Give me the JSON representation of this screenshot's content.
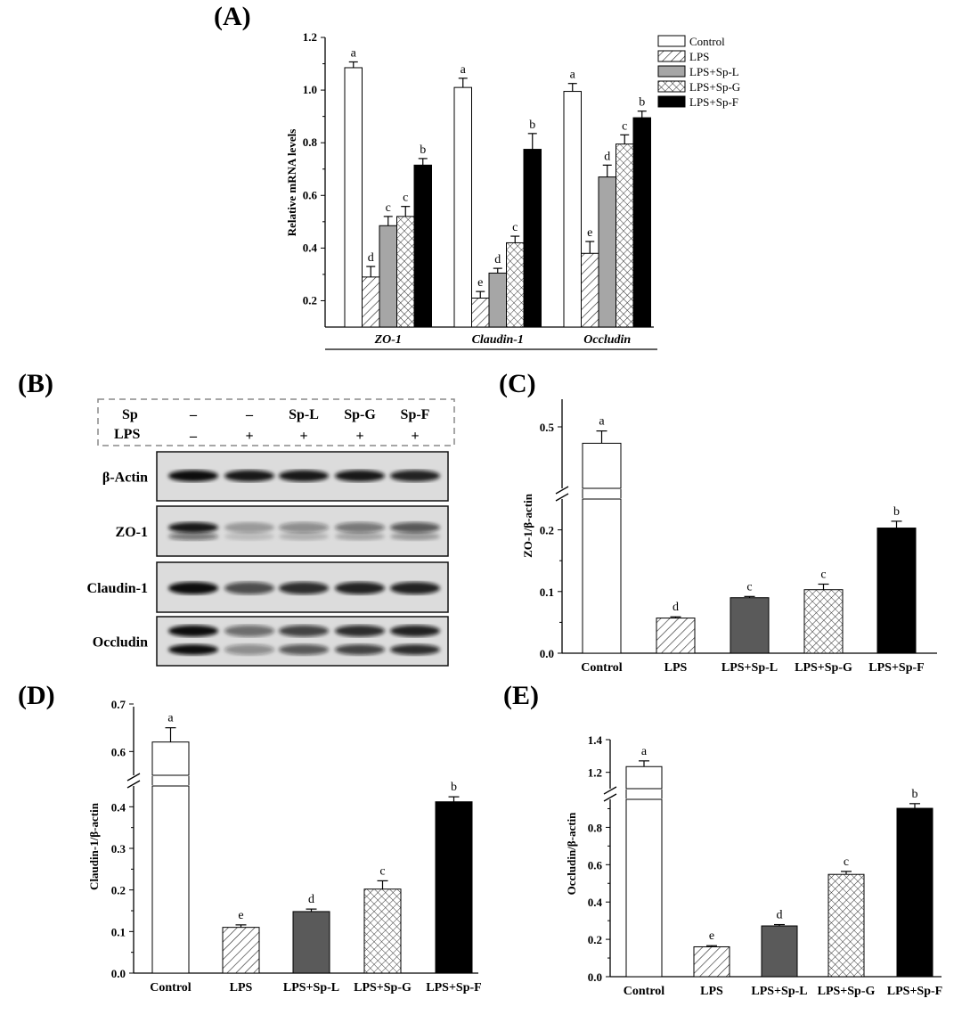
{
  "chart_data": [
    {
      "panel": "(A)",
      "type": "bar",
      "ylabel": "Relative mRNA levels",
      "ylim": [
        0.1,
        1.2
      ],
      "yticks": [
        "0.2",
        "0.4",
        "0.6",
        "0.8",
        "1.0",
        "1.2"
      ],
      "categories": [
        "ZO-1",
        "Claudin-1",
        "Occludin"
      ],
      "series": [
        {
          "name": "Control",
          "pattern": "white",
          "values": [
            1.085,
            1.01,
            0.995
          ],
          "errors": [
            0.022,
            0.035,
            0.03
          ],
          "letters": [
            "a",
            "a",
            "a"
          ]
        },
        {
          "name": "LPS",
          "pattern": "hatch",
          "values": [
            0.29,
            0.21,
            0.38
          ],
          "errors": [
            0.04,
            0.025,
            0.045
          ],
          "letters": [
            "d",
            "e",
            "e"
          ]
        },
        {
          "name": "LPS+Sp-L",
          "pattern": "gray",
          "values": [
            0.485,
            0.305,
            0.67
          ],
          "errors": [
            0.035,
            0.018,
            0.045
          ],
          "letters": [
            "c",
            "d",
            "d"
          ]
        },
        {
          "name": "LPS+Sp-G",
          "pattern": "crosshatch",
          "values": [
            0.52,
            0.42,
            0.795
          ],
          "errors": [
            0.038,
            0.025,
            0.035
          ],
          "letters": [
            "c",
            "c",
            "c"
          ]
        },
        {
          "name": "LPS+Sp-F",
          "pattern": "black",
          "values": [
            0.715,
            0.775,
            0.895
          ],
          "errors": [
            0.025,
            0.06,
            0.025
          ],
          "letters": [
            "b",
            "b",
            "b"
          ]
        }
      ],
      "legend": [
        "Control",
        "LPS",
        "LPS+Sp-L",
        "LPS+Sp-G",
        "LPS+Sp-F"
      ]
    },
    {
      "panel": "(C)",
      "type": "bar",
      "ylabel": "ZO-1/β-actin",
      "categories": [
        "Control",
        "LPS",
        "LPS+Sp-L",
        "LPS+Sp-G",
        "LPS+Sp-F"
      ],
      "patterns": [
        "white",
        "hatch",
        "dgray",
        "crosshatch",
        "black"
      ],
      "values": [
        0.46,
        0.057,
        0.09,
        0.103,
        0.203
      ],
      "errors": [
        0.03,
        0.002,
        0.002,
        0.009,
        0.011
      ],
      "letters": [
        "a",
        "d",
        "c",
        "c",
        "b"
      ],
      "yticks": [
        "0.0",
        "0.1",
        "0.2",
        "0.5"
      ],
      "axis_break": [
        0.25,
        0.4
      ]
    },
    {
      "panel": "(D)",
      "type": "bar",
      "ylabel": "Claudin-1/β-actin",
      "categories": [
        "Control",
        "LPS",
        "LPS+Sp-L",
        "LPS+Sp-G",
        "LPS+Sp-F"
      ],
      "patterns": [
        "white",
        "hatch",
        "dgray",
        "crosshatch",
        "black"
      ],
      "values": [
        0.62,
        0.11,
        0.148,
        0.202,
        0.412
      ],
      "errors": [
        0.03,
        0.006,
        0.006,
        0.02,
        0.012
      ],
      "letters": [
        "a",
        "e",
        "d",
        "c",
        "b"
      ],
      "yticks": [
        "0.0",
        "0.1",
        "0.2",
        "0.3",
        "0.4",
        "0.6",
        "0.7"
      ],
      "axis_break": [
        0.45,
        0.55
      ]
    },
    {
      "panel": "(E)",
      "type": "bar",
      "ylabel": "Occludin/β-actin",
      "categories": [
        "Control",
        "LPS",
        "LPS+Sp-L",
        "LPS+Sp-G",
        "LPS+Sp-F"
      ],
      "patterns": [
        "white",
        "hatch",
        "dgray",
        "crosshatch",
        "black"
      ],
      "values": [
        1.235,
        0.16,
        0.272,
        0.548,
        0.902
      ],
      "errors": [
        0.035,
        0.006,
        0.007,
        0.016,
        0.025
      ],
      "letters": [
        "a",
        "e",
        "d",
        "c",
        "b"
      ],
      "yticks": [
        "0.0",
        "0.2",
        "0.4",
        "0.6",
        "0.8",
        "1.2",
        "1.4"
      ],
      "axis_break": [
        0.95,
        1.1
      ]
    }
  ],
  "western_blot": {
    "panel": "(B)",
    "sp_label": "Sp",
    "lps_label": "LPS",
    "sp_values": [
      "–",
      "–",
      "Sp-L",
      "Sp-G",
      "Sp-F"
    ],
    "lps_values": [
      "–",
      "+",
      "+",
      "+",
      "+"
    ],
    "proteins": [
      "β-Actin",
      "ZO-1",
      "Claudin-1",
      "Occludin"
    ]
  }
}
